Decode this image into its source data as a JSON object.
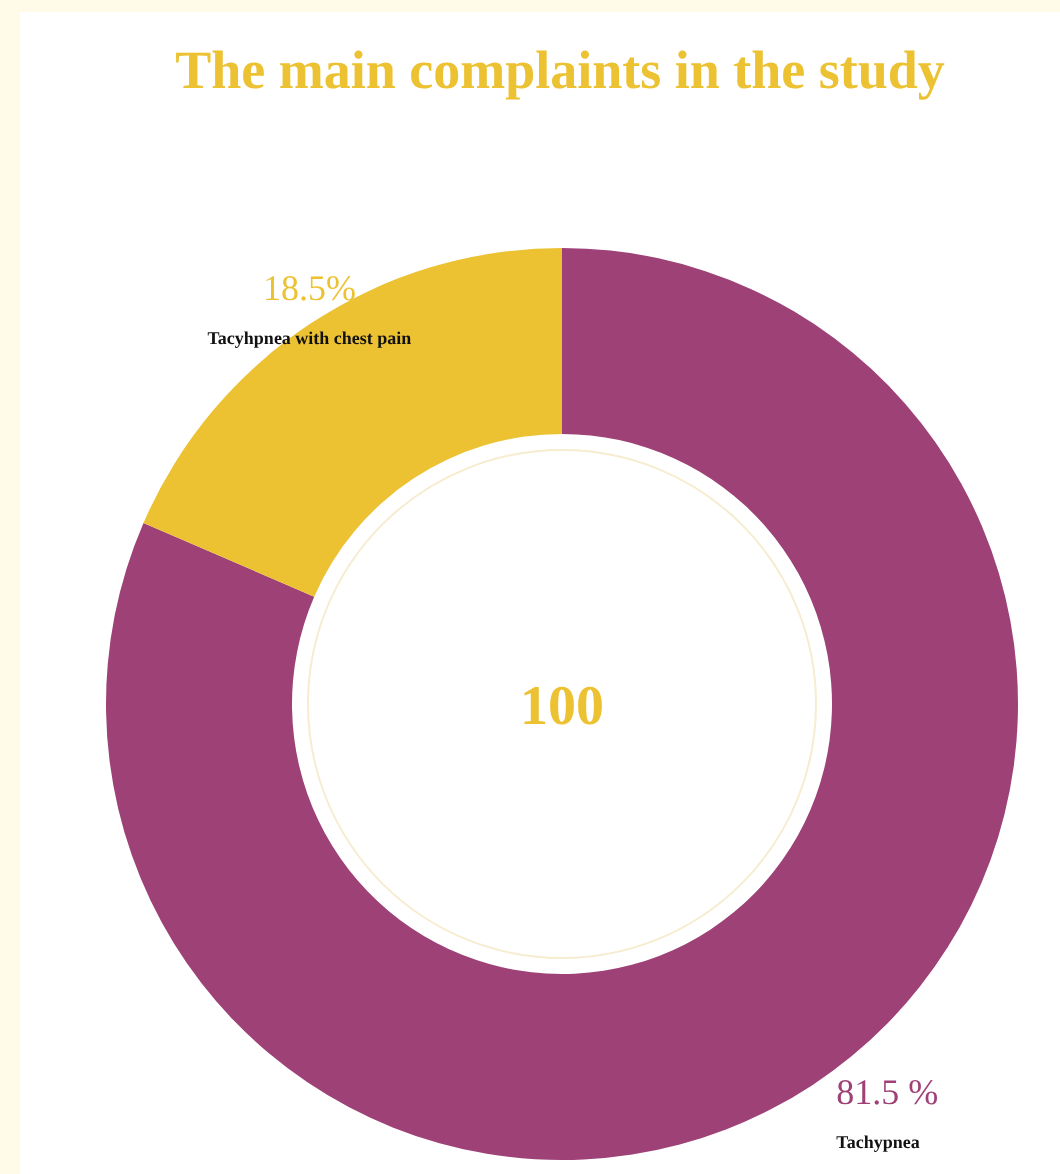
{
  "chart_data": {
    "type": "donut",
    "title": "The main complaints in the study",
    "categories": [
      "Tachypnea",
      "Tacyhpnea with chest pain"
    ],
    "values": [
      81.5,
      18.5
    ],
    "colors": [
      "#9e4177",
      "#ecc232"
    ],
    "value_labels": [
      "81.5 %",
      "18.5%"
    ],
    "annotations": [
      "100"
    ],
    "legend": false
  }
}
